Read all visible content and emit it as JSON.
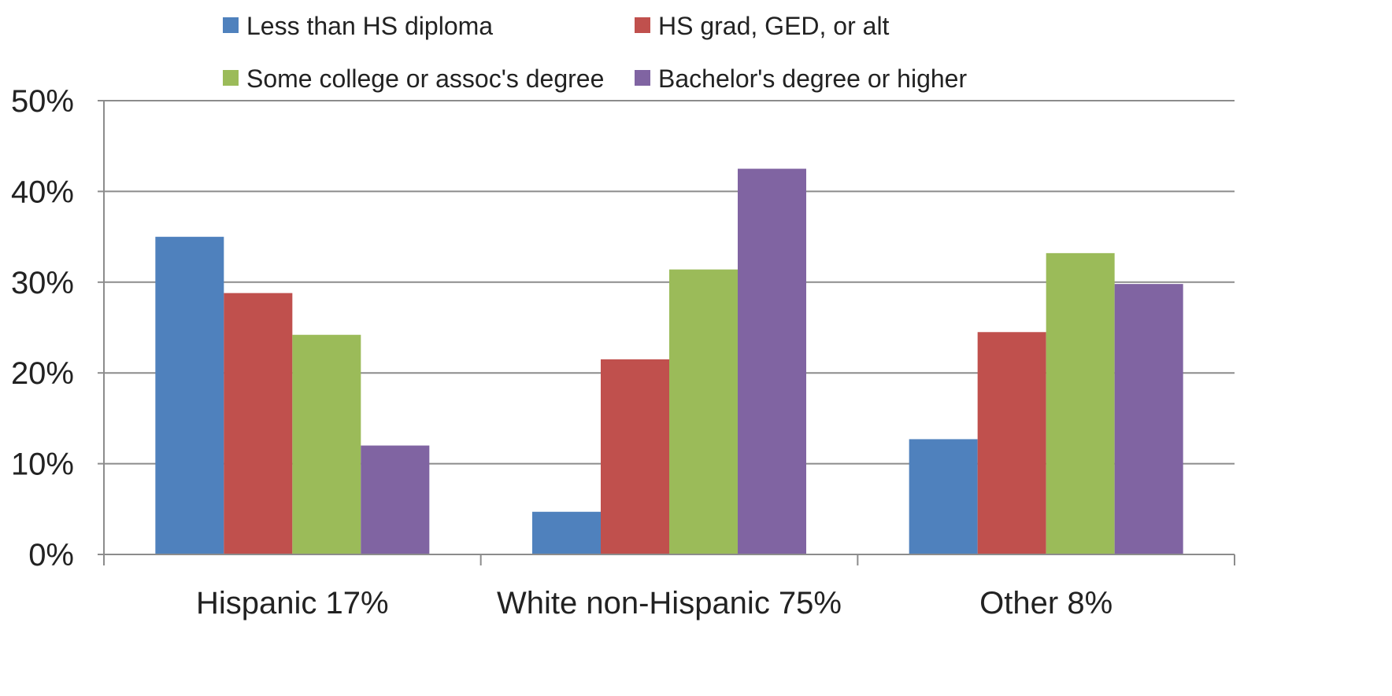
{
  "chart_data": {
    "type": "bar",
    "categories": [
      "Hispanic 17%",
      "White non-Hispanic 75%",
      "Other 8%"
    ],
    "series": [
      {
        "name": "Less than HS diploma",
        "color": "#4F81BD",
        "values": [
          35,
          4.7,
          12.7
        ]
      },
      {
        "name": "HS grad, GED, or alt",
        "color": "#C0504D",
        "values": [
          28.8,
          21.5,
          24.5
        ]
      },
      {
        "name": "Some college or assoc's degree",
        "color": "#9BBB59",
        "values": [
          24.2,
          31.4,
          33.2
        ]
      },
      {
        "name": "Bachelor's degree or higher",
        "color": "#8064A2",
        "values": [
          12,
          42.5,
          29.8
        ]
      }
    ],
    "ylim": [
      0,
      50
    ],
    "yticks": [
      0,
      10,
      20,
      30,
      40,
      50
    ],
    "ytick_labels": [
      "0%",
      "10%",
      "20%",
      "30%",
      "40%",
      "50%"
    ],
    "grid": true,
    "legend_position": "top"
  }
}
